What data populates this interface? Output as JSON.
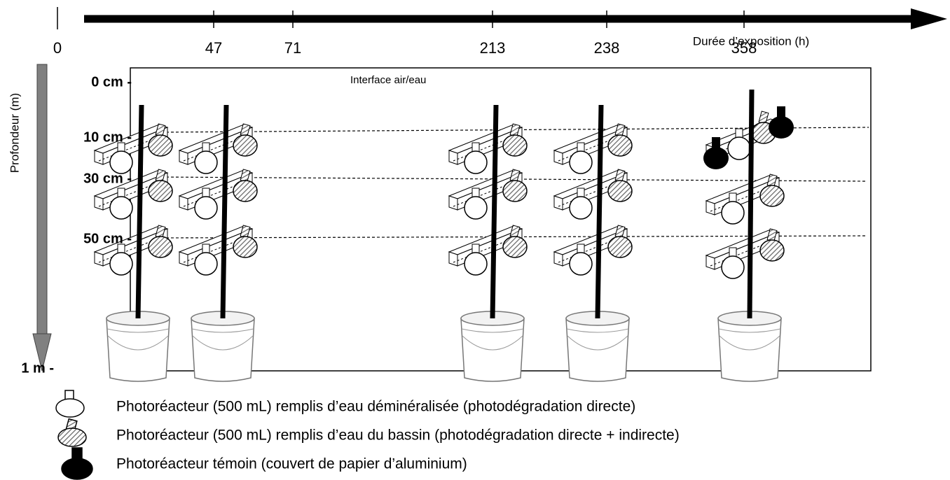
{
  "timeline": {
    "title": "Durée d’exposition (h)",
    "ticks": [
      "0",
      "47",
      "71",
      "213",
      "238",
      "358"
    ]
  },
  "depth_axis": {
    "title": "Profondeur (m)",
    "labels": [
      "0 cm -",
      "10 cm -",
      "30 cm -",
      "50 cm -",
      "1 m -"
    ]
  },
  "interface_label": "Interface air/eau",
  "legend": [
    "Photoréacteur (500 mL) remplis d’eau déminéralisée (photodégradation directe)",
    "Photoréacteur (500 mL) remplis d’eau du bassin (photodégradation directe + indirecte)",
    "Photoréacteur témoin (couvert de papier d’aluminium)"
  ]
}
